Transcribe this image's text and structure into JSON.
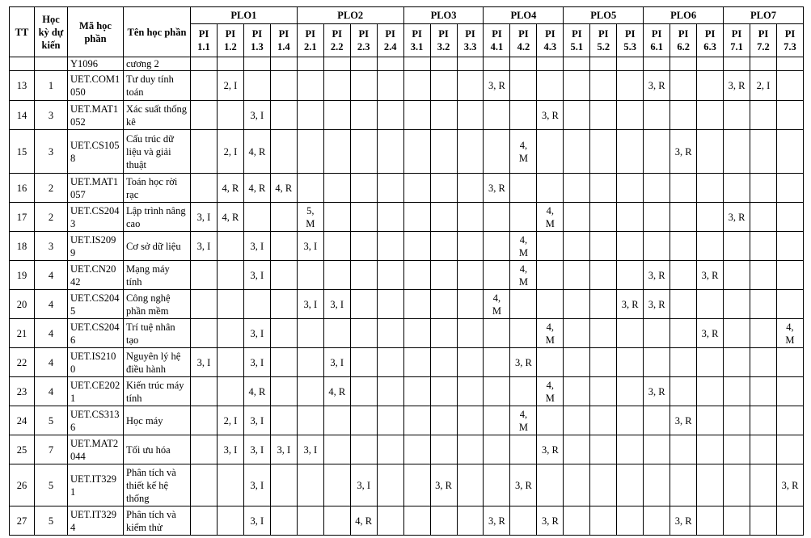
{
  "headers": {
    "tt": "TT",
    "semester": "Học kỳ dự kiến",
    "code": "Mã học phần",
    "name": "Tên học phần"
  },
  "plo_groups": [
    {
      "label": "PLO1",
      "pis": [
        "PI 1.1",
        "PI 1.2",
        "PI 1.3",
        "PI 1.4"
      ]
    },
    {
      "label": "PLO2",
      "pis": [
        "PI 2.1",
        "PI 2.2",
        "PI 2.3",
        "PI 2.4"
      ]
    },
    {
      "label": "PLO3",
      "pis": [
        "PI 3.1",
        "PI 3.2",
        "PI 3.3"
      ]
    },
    {
      "label": "PLO4",
      "pis": [
        "PI 4.1",
        "PI 4.2",
        "PI 4.3"
      ]
    },
    {
      "label": "PLO5",
      "pis": [
        "PI 5.1",
        "PI 5.2",
        "PI 5.3"
      ]
    },
    {
      "label": "PLO6",
      "pis": [
        "PI 6.1",
        "PI 6.2",
        "PI 6.3"
      ]
    },
    {
      "label": "PLO7",
      "pis": [
        "PI 7.1",
        "PI 7.2",
        "PI 7.3"
      ]
    }
  ],
  "pi_keys": [
    "1.1",
    "1.2",
    "1.3",
    "1.4",
    "2.1",
    "2.2",
    "2.3",
    "2.4",
    "3.1",
    "3.2",
    "3.3",
    "4.1",
    "4.2",
    "4.3",
    "5.1",
    "5.2",
    "5.3",
    "6.1",
    "6.2",
    "6.3",
    "7.1",
    "7.2",
    "7.3"
  ],
  "rows": [
    {
      "tt": "",
      "semester": "",
      "code": "Y1096",
      "name": "cương 2",
      "pi": {}
    },
    {
      "tt": "13",
      "semester": "1",
      "code": "UET.COM1050",
      "name": "Tư duy tính toán",
      "pi": {
        "1.2": "2, I",
        "4.1": "3, R",
        "6.1": "3, R",
        "7.1": "3, R",
        "7.2": "2, I"
      }
    },
    {
      "tt": "14",
      "semester": "3",
      "code": "UET.MAT1052",
      "name": "Xác suất thống kê",
      "pi": {
        "1.3": "3, I",
        "4.3": "3, R"
      }
    },
    {
      "tt": "15",
      "semester": "3",
      "code": "UET.CS1058",
      "name": "Cấu trúc dữ liệu và giải thuật",
      "pi": {
        "1.2": "2, I",
        "1.3": "4, R",
        "4.2": "4, M",
        "6.2": "3, R"
      }
    },
    {
      "tt": "16",
      "semester": "2",
      "code": "UET.MAT1057",
      "name": "Toán học rời rạc",
      "pi": {
        "1.2": "4, R",
        "1.3": "4, R",
        "1.4": "4, R",
        "4.1": "3, R"
      }
    },
    {
      "tt": "17",
      "semester": "2",
      "code": "UET.CS2043",
      "name": "Lập trình nâng cao",
      "pi": {
        "1.1": "3, I",
        "1.2": "4, R",
        "2.1": "5, M",
        "4.3": "4, M",
        "7.1": "3, R"
      }
    },
    {
      "tt": "18",
      "semester": "3",
      "code": "UET.IS2099",
      "name": "Cơ sở dữ liệu",
      "pi": {
        "1.1": "3, I",
        "1.3": "3, I",
        "2.1": "3, I",
        "4.2": "4, M"
      }
    },
    {
      "tt": "19",
      "semester": "4",
      "code": "UET.CN2042",
      "name": "Mạng máy tính",
      "pi": {
        "1.3": "3, I",
        "4.2": "4, M",
        "6.1": "3, R",
        "6.3": "3, R"
      }
    },
    {
      "tt": "20",
      "semester": "4",
      "code": "UET.CS2045",
      "name": "Công nghệ phần mềm",
      "pi": {
        "2.1": "3, I",
        "2.2": "3, I",
        "4.1": "4, M",
        "5.3": "3, R",
        "6.1": "3, R"
      }
    },
    {
      "tt": "21",
      "semester": "4",
      "code": "UET.CS2046",
      "name": "Trí tuệ nhân tạo",
      "pi": {
        "1.3": "3, I",
        "4.3": "4, M",
        "6.3": "3, R",
        "7.3": "4, M"
      }
    },
    {
      "tt": "22",
      "semester": "4",
      "code": "UET.IS2100",
      "name": "Nguyên lý hệ điều hành",
      "pi": {
        "1.1": "3, I",
        "1.3": "3, I",
        "2.2": "3, I",
        "4.2": "3, R"
      }
    },
    {
      "tt": "23",
      "semester": "4",
      "code": "UET.CE2021",
      "name": "Kiến trúc máy tính",
      "pi": {
        "1.3": "4, R",
        "2.2": "4, R",
        "4.3": "4, M",
        "6.1": "3, R"
      }
    },
    {
      "tt": "24",
      "semester": "5",
      "code": "UET.CS3136",
      "name": "Học máy",
      "pi": {
        "1.2": "2, I",
        "1.3": "3, I",
        "4.2": "4, M",
        "6.2": "3, R"
      }
    },
    {
      "tt": "25",
      "semester": "7",
      "code": "UET.MAT2044",
      "name": "Tối ưu hóa",
      "pi": {
        "1.2": "3, I",
        "1.3": "3, I",
        "1.4": "3, I",
        "2.1": "3, I",
        "4.3": "3, R"
      }
    },
    {
      "tt": "26",
      "semester": "5",
      "code": "UET.IT3291",
      "name": "Phân tích và thiết kế hệ thống",
      "pi": {
        "1.3": "3, I",
        "2.3": "3, I",
        "3.2": "3, R",
        "4.2": "3, R",
        "7.3": "3, R"
      }
    },
    {
      "tt": "27",
      "semester": "5",
      "code": "UET.IT3294",
      "name": "Phân tích và kiểm thử",
      "pi": {
        "1.3": "3, I",
        "2.3": "4, R",
        "4.1": "3, R",
        "4.3": "3, R",
        "6.2": "3, R"
      }
    }
  ]
}
